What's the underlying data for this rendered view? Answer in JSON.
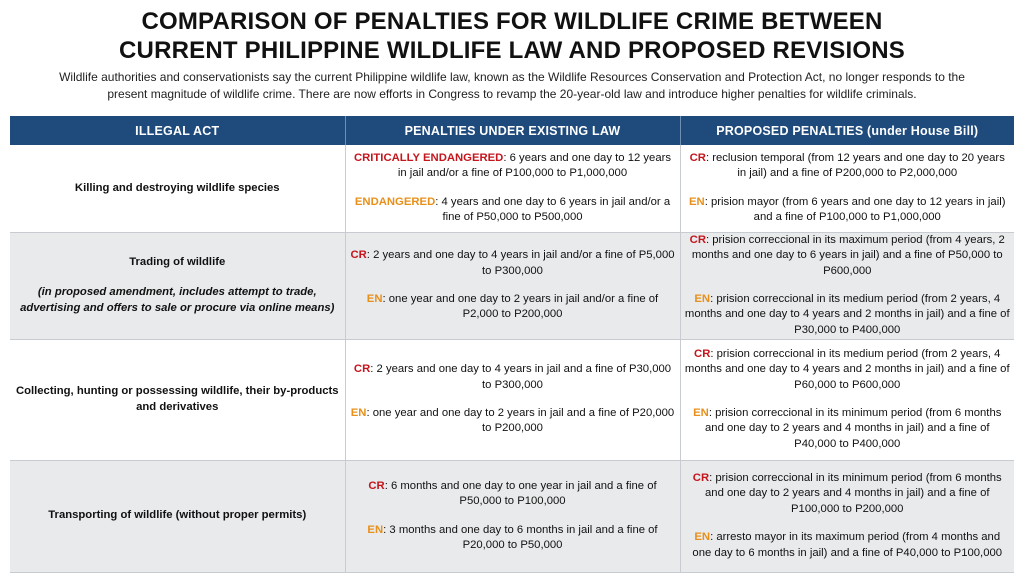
{
  "title": {
    "line1": "COMPARISON OF PENALTIES FOR WILDLIFE CRIME BETWEEN",
    "line2": "CURRENT PHILIPPINE WILDLIFE LAW AND PROPOSED REVISIONS"
  },
  "intro": "Wildlife authorities and conservationists say the current Philippine wildlife law, known as the Wildlife Resources Conservation and Protection Act, no longer responds to the present magnitude of wildlife crime. There are now efforts in Congress to revamp the 20-year-old law and introduce higher penalties for wildlife criminals.",
  "colors": {
    "header_bg": "#1e4a7c",
    "cr": "#c4161c",
    "en": "#e8901a",
    "row_shade": "#e9eaec"
  },
  "table": {
    "headers": [
      "ILLEGAL ACT",
      "PENALTIES UNDER EXISTING LAW",
      "PROPOSED PENALTIES (under House Bill)"
    ],
    "rows": [
      {
        "act": "Killing and destroying wildlife species",
        "note": "",
        "existing": [
          {
            "tag": "CRITICALLY ENDANGERED",
            "text": ": 6 years and one day to 12 years in jail and/or a fine of P100,000 to P1,000,000"
          },
          {
            "tag": "ENDANGERED",
            "text": ": 4 years and one day to 6 years in jail and/or a fine of P50,000 to P500,000"
          }
        ],
        "proposed": [
          {
            "tag": "CR",
            "text": ": reclusion temporal (from 12 years and one day to 20 years in jail) and a fine of P200,000 to P2,000,000"
          },
          {
            "tag": "EN",
            "text": ": prision mayor (from 6 years and one day to 12 years in jail) and a fine of P100,000 to P1,000,000"
          }
        ]
      },
      {
        "act": "Trading of wildlife",
        "note": "(in proposed amendment, includes attempt to trade, advertising and offers to sale or procure via online means)",
        "existing": [
          {
            "tag": "CR",
            "text": ": 2 years and one day to 4 years in jail and/or a fine of P5,000 to P300,000"
          },
          {
            "tag": "EN",
            "text": ": one year and one day to 2 years in jail and/or a fine of P2,000 to P200,000"
          }
        ],
        "proposed": [
          {
            "tag": "CR",
            "text": ": prision correccional in its maximum period (from 4 years, 2 months and one day to 6 years in jail) and a fine of P50,000 to P600,000"
          },
          {
            "tag": "EN",
            "text": ": prision correccional in its medium period (from 2 years, 4 months and one day to 4 years and 2 months in jail) and a fine of P30,000 to P400,000"
          }
        ]
      },
      {
        "act": "Collecting, hunting or possessing wildlife, their by-products and derivatives",
        "note": "",
        "existing": [
          {
            "tag": "CR",
            "text": ": 2 years and one day to 4 years in jail and a fine of P30,000 to P300,000"
          },
          {
            "tag": "EN",
            "text": ": one year and one day to 2 years in jail and a fine of P20,000 to P200,000"
          }
        ],
        "proposed": [
          {
            "tag": "CR",
            "text": ": prision correccional in its medium period (from 2 years, 4 months and one day to 4 years and 2 months in jail) and a fine of P60,000 to P600,000"
          },
          {
            "tag": "EN",
            "text": ": prision correccional in its minimum period (from 6 months and one day to 2 years and 4 months in jail) and a fine of P40,000 to P400,000"
          }
        ]
      },
      {
        "act": "Transporting of wildlife (without proper permits)",
        "note": "",
        "existing": [
          {
            "tag": "CR",
            "text": ": 6 months and one day to one year in jail and a fine of P50,000 to P100,000"
          },
          {
            "tag": "EN",
            "text": ": 3 months and one day to 6 months in jail and a fine of P20,000 to P50,000"
          }
        ],
        "proposed": [
          {
            "tag": "CR",
            "text": ": prision correccional in its minimum period (from 6 months and one day to 2 years and 4 months in jail) and a fine of P100,000 to P200,000"
          },
          {
            "tag": "EN",
            "text": ": arresto mayor in its maximum period (from 4 months and one day to 6 months in jail) and a fine of P40,000 to P100,000"
          }
        ]
      }
    ]
  }
}
